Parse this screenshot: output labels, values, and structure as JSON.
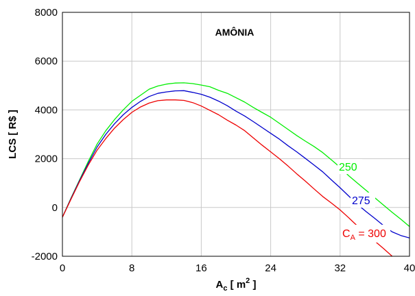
{
  "chart_data": {
    "type": "line",
    "title": "AMÔNIA",
    "xlabel": {
      "base": "A",
      "sub": "c",
      "bracket_open": " [ m",
      "sup": "2",
      "bracket_close": " ]"
    },
    "ylabel": "LCS [ R$ ]",
    "xlim": [
      0,
      40
    ],
    "ylim": [
      -2000,
      8000
    ],
    "xticks": [
      0,
      8,
      16,
      24,
      32,
      40
    ],
    "yticks": [
      -2000,
      0,
      2000,
      4000,
      6000,
      8000
    ],
    "grid": true,
    "series": [
      {
        "name": "250",
        "color": "#00ee00",
        "x": [
          0,
          1,
          2,
          3,
          4,
          5,
          6,
          7,
          8,
          9,
          10,
          11,
          12,
          13,
          14,
          15,
          16,
          17,
          18,
          19,
          20,
          21,
          22,
          23,
          24,
          25,
          26,
          27,
          28,
          29,
          30,
          31,
          32,
          33,
          34,
          35,
          36,
          37,
          38,
          39,
          40
        ],
        "y": [
          -400,
          400,
          1150,
          1900,
          2600,
          3150,
          3600,
          4000,
          4350,
          4600,
          4850,
          4980,
          5060,
          5100,
          5110,
          5080,
          5020,
          4950,
          4800,
          4680,
          4500,
          4320,
          4100,
          3900,
          3700,
          3450,
          3200,
          2950,
          2720,
          2500,
          2250,
          1950,
          1650,
          1300,
          1000,
          700,
          400,
          100,
          -200,
          -480,
          -780
        ]
      },
      {
        "name": "275",
        "color": "#0000cc",
        "x": [
          0,
          1,
          2,
          3,
          4,
          5,
          6,
          7,
          8,
          9,
          10,
          11,
          12,
          13,
          14,
          15,
          16,
          17,
          18,
          19,
          20,
          21,
          22,
          23,
          24,
          25,
          26,
          27,
          28,
          29,
          30,
          31,
          32,
          33,
          34,
          35,
          36,
          37,
          38,
          39,
          40
        ],
        "y": [
          -400,
          380,
          1120,
          1820,
          2480,
          3000,
          3430,
          3800,
          4100,
          4350,
          4550,
          4680,
          4740,
          4780,
          4790,
          4720,
          4640,
          4520,
          4360,
          4170,
          3950,
          3750,
          3520,
          3280,
          3040,
          2800,
          2530,
          2280,
          2010,
          1740,
          1460,
          1130,
          810,
          470,
          130,
          -170,
          -450,
          -740,
          -1000,
          -1150,
          -1250
        ]
      },
      {
        "name": "C_A = 300",
        "color": "#ee0000",
        "x": [
          0,
          1,
          2,
          3,
          4,
          5,
          6,
          7,
          8,
          9,
          10,
          11,
          12,
          13,
          14,
          15,
          16,
          17,
          18,
          19,
          20,
          21,
          22,
          23,
          24,
          25,
          26,
          27,
          28,
          29,
          30,
          31,
          32,
          33,
          34,
          35,
          36,
          37,
          38,
          39,
          40
        ],
        "y": [
          -400,
          350,
          1080,
          1750,
          2350,
          2830,
          3250,
          3600,
          3900,
          4120,
          4280,
          4380,
          4410,
          4410,
          4390,
          4300,
          4160,
          3980,
          3800,
          3580,
          3380,
          3150,
          2850,
          2560,
          2280,
          2000,
          1700,
          1380,
          1080,
          760,
          450,
          180,
          -100,
          -420,
          -760,
          -1080,
          -1380,
          -1680,
          -2000,
          -2300,
          -2600
        ]
      }
    ],
    "annotations": {
      "label_250": "250",
      "label_275": "275",
      "label_300": {
        "base": "C",
        "sub": "A",
        "rest": " = 300"
      }
    }
  }
}
